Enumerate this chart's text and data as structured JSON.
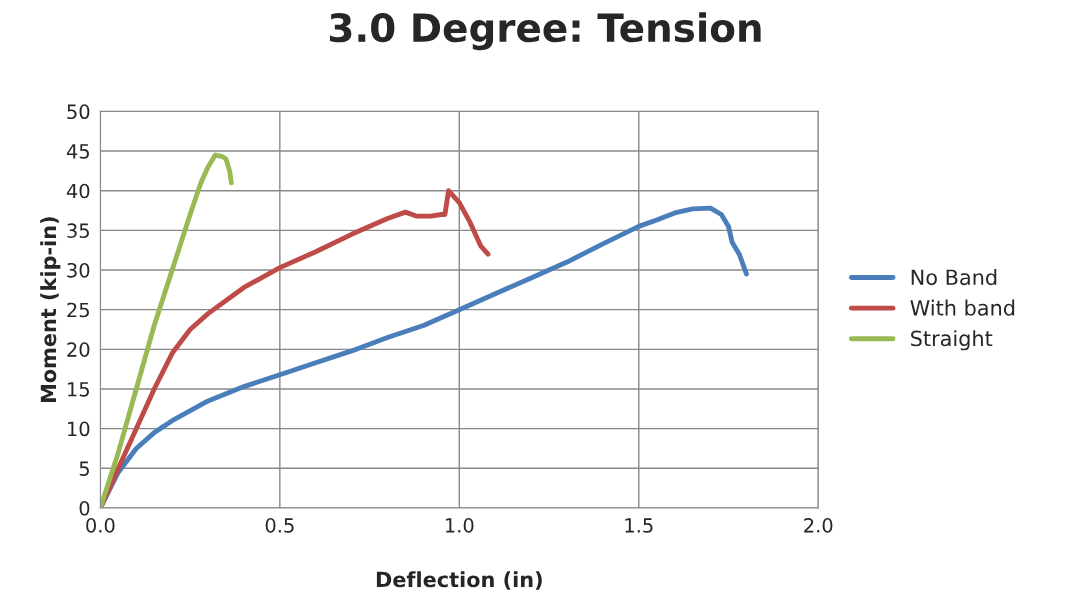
{
  "chart_data": {
    "type": "line",
    "title": "3.0 Degree: Tension",
    "xlabel": "Deflection (in)",
    "ylabel": "Moment (kip-in)",
    "xlim": [
      0,
      2
    ],
    "xticks": [
      {
        "value": 0,
        "label": "0.0"
      },
      {
        "value": 0.5,
        "label": "0.5"
      },
      {
        "value": 1,
        "label": "1.0"
      },
      {
        "value": 1.5,
        "label": "1.5"
      },
      {
        "value": 2,
        "label": "2.0"
      }
    ],
    "ylim": [
      0,
      50
    ],
    "yticks": [
      0,
      5,
      10,
      15,
      20,
      25,
      30,
      35,
      40,
      45,
      50
    ],
    "grid": true,
    "legend": "right",
    "marker": "none",
    "line_style": "solid",
    "series": [
      {
        "name": "No Band",
        "color": "#4a7ebb",
        "x": [
          0,
          0.05,
          0.1,
          0.15,
          0.2,
          0.3,
          0.4,
          0.5,
          0.6,
          0.7,
          0.8,
          0.9,
          1.0,
          1.1,
          1.2,
          1.3,
          1.4,
          1.5,
          1.55,
          1.6,
          1.65,
          1.7,
          1.73,
          1.75,
          1.76,
          1.78,
          1.8
        ],
        "values": [
          0,
          4.5,
          7.5,
          9.5,
          11,
          13.5,
          15.3,
          16.8,
          18.3,
          19.8,
          21.5,
          23,
          25,
          27,
          29,
          31,
          33.3,
          35.5,
          36.3,
          37.2,
          37.7,
          37.8,
          37,
          35.5,
          33.5,
          32,
          29.5
        ]
      },
      {
        "name": "With band",
        "color": "#be4b48",
        "x": [
          0,
          0.05,
          0.1,
          0.15,
          0.2,
          0.25,
          0.3,
          0.4,
          0.5,
          0.6,
          0.7,
          0.8,
          0.85,
          0.88,
          0.92,
          0.95,
          0.96,
          0.97,
          1.0,
          1.03,
          1.06,
          1.08
        ],
        "values": [
          0,
          5,
          10,
          15,
          19.5,
          22.5,
          24.5,
          27.8,
          30.3,
          32.3,
          34.5,
          36.5,
          37.3,
          36.8,
          36.8,
          37,
          37,
          40,
          38.5,
          36,
          33,
          32
        ]
      },
      {
        "name": "Straight",
        "color": "#98b954",
        "x": [
          0,
          0.05,
          0.1,
          0.15,
          0.2,
          0.25,
          0.28,
          0.3,
          0.32,
          0.34,
          0.35,
          0.36,
          0.365
        ],
        "values": [
          0,
          7,
          15,
          23,
          30,
          37,
          41,
          43,
          44.5,
          44.3,
          44,
          42.5,
          41
        ]
      }
    ]
  }
}
